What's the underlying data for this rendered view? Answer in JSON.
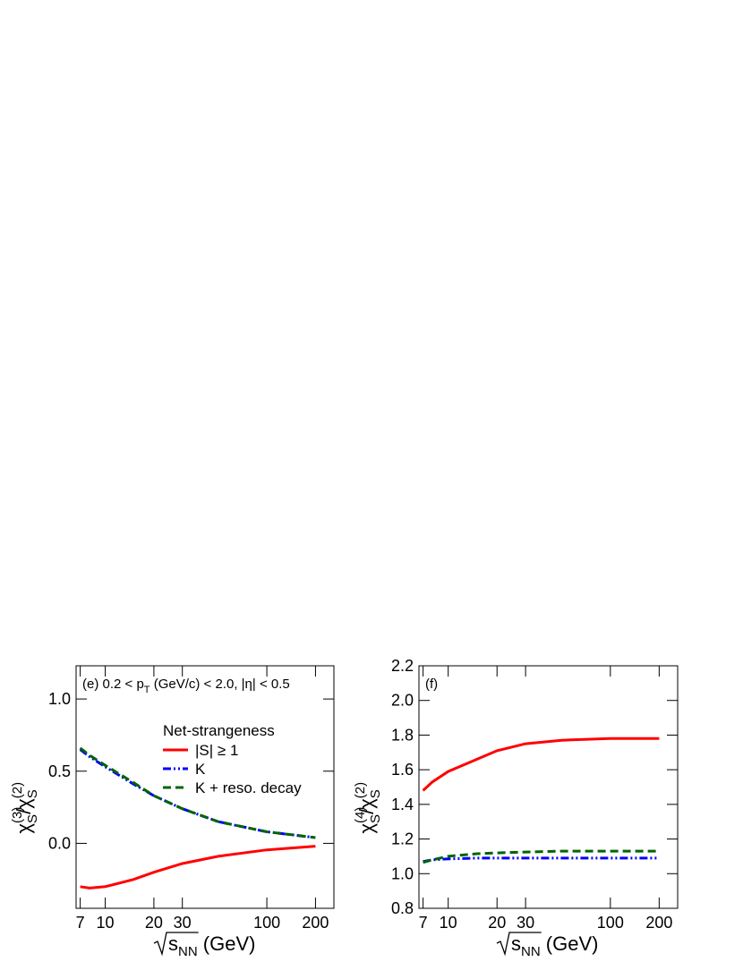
{
  "chart_data": [
    {
      "type": "line",
      "xscale": "log",
      "annotation": [
        "(e) 0.2 < p",
        "T",
        " (GeV/c) < 2.0, |η| < 0.5"
      ],
      "xlabel": [
        "s",
        "NN",
        " (GeV)"
      ],
      "ylabel": [
        "χ",
        "(3)",
        "S",
        "/χ",
        "(2)",
        "S"
      ],
      "xlim": [
        6.6,
        260
      ],
      "xticks": [
        7,
        10,
        20,
        30,
        100,
        200
      ],
      "ylim": [
        -0.45,
        1.23
      ],
      "yticks": [
        {
          "value": 0,
          "label": "0.0"
        },
        0.5,
        {
          "value": 1,
          "label": "1.0"
        }
      ],
      "legend": "center right",
      "legend_title": "Net-strangeness",
      "x": [
        7,
        8,
        10,
        15,
        20,
        30,
        50,
        100,
        200
      ],
      "series": [
        {
          "name": "|S| ≥ 1",
          "color": "#ff0000",
          "linestyle": "solid",
          "values": [
            -0.3,
            -0.31,
            -0.3,
            -0.25,
            -0.2,
            -0.14,
            -0.09,
            -0.045,
            -0.02
          ]
        },
        {
          "name": "K",
          "color": "#0000ff",
          "linestyle": "dashdotdot",
          "values": [
            0.65,
            0.6,
            0.53,
            0.41,
            0.33,
            0.24,
            0.15,
            0.08,
            0.04
          ]
        },
        {
          "name": "K + reso. decay",
          "color": "#006400",
          "linestyle": "dashed",
          "values": [
            0.66,
            0.61,
            0.54,
            0.42,
            0.33,
            0.24,
            0.15,
            0.08,
            0.04
          ]
        }
      ]
    },
    {
      "type": "line",
      "xscale": "log",
      "annotation": [
        "(f)"
      ],
      "xlabel": [
        "s",
        "NN",
        " (GeV)"
      ],
      "ylabel": [
        "χ",
        "(4)",
        "S",
        "/χ",
        "(2)",
        "S"
      ],
      "xlim": [
        6.6,
        260
      ],
      "xticks": [
        7,
        10,
        20,
        30,
        100,
        200
      ],
      "ylim": [
        0.8,
        2.2
      ],
      "yticks": [
        0.8,
        {
          "value": 1,
          "label": "1.0"
        },
        1.2,
        1.4,
        1.6,
        1.8,
        {
          "value": 2,
          "label": "2.0"
        },
        2.2
      ],
      "x": [
        7,
        8,
        10,
        15,
        20,
        30,
        50,
        100,
        200
      ],
      "series": [
        {
          "color": "#ff0000",
          "linestyle": "solid",
          "values": [
            1.48,
            1.53,
            1.59,
            1.66,
            1.71,
            1.75,
            1.77,
            1.78,
            1.78
          ]
        },
        {
          "color": "#0000ff",
          "linestyle": "dashdotdot",
          "values": [
            1.07,
            1.08,
            1.085,
            1.09,
            1.09,
            1.09,
            1.09,
            1.09,
            1.09
          ]
        },
        {
          "color": "#006400",
          "linestyle": "dashed",
          "values": [
            1.065,
            1.08,
            1.1,
            1.115,
            1.12,
            1.125,
            1.13,
            1.13,
            1.13
          ]
        }
      ]
    }
  ]
}
